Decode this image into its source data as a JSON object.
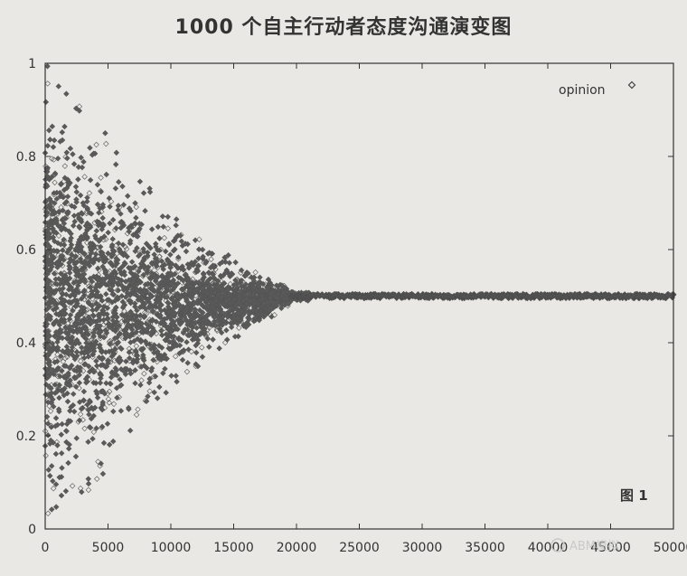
{
  "chart_data": {
    "type": "scatter",
    "title": "1000 个自主行动者态度沟通演变图",
    "xlim": [
      0,
      50000
    ],
    "ylim": [
      0,
      1
    ],
    "x_ticks": [
      0,
      5000,
      10000,
      15000,
      20000,
      25000,
      30000,
      35000,
      40000,
      45000,
      50000
    ],
    "y_ticks": [
      0,
      0.2,
      0.4,
      0.6,
      0.8,
      1
    ],
    "x_tick_labels": [
      "0",
      "5000",
      "10000",
      "15000",
      "20000",
      "25000",
      "30000",
      "35000",
      "40000",
      "45000",
      "50000"
    ],
    "y_tick_labels": [
      "0",
      "0.2",
      "0.4",
      "0.6",
      "0.8",
      "1"
    ],
    "series": [
      {
        "name": "opinion",
        "color": "#555555",
        "marker": "diamond",
        "envelope": {
          "x": [
            0,
            2000,
            5000,
            10000,
            15000,
            20000,
            50000
          ],
          "upper": [
            1.0,
            0.93,
            0.85,
            0.68,
            0.58,
            0.51,
            0.505
          ],
          "lower": [
            0.0,
            0.04,
            0.13,
            0.3,
            0.4,
            0.49,
            0.495
          ]
        },
        "converged_value": 0.5
      }
    ],
    "legend": {
      "position": "top-right",
      "entries": [
        "opinion"
      ]
    },
    "grid": false,
    "annotation": "图 1"
  },
  "watermark": {
    "text": "ABM模拟"
  }
}
